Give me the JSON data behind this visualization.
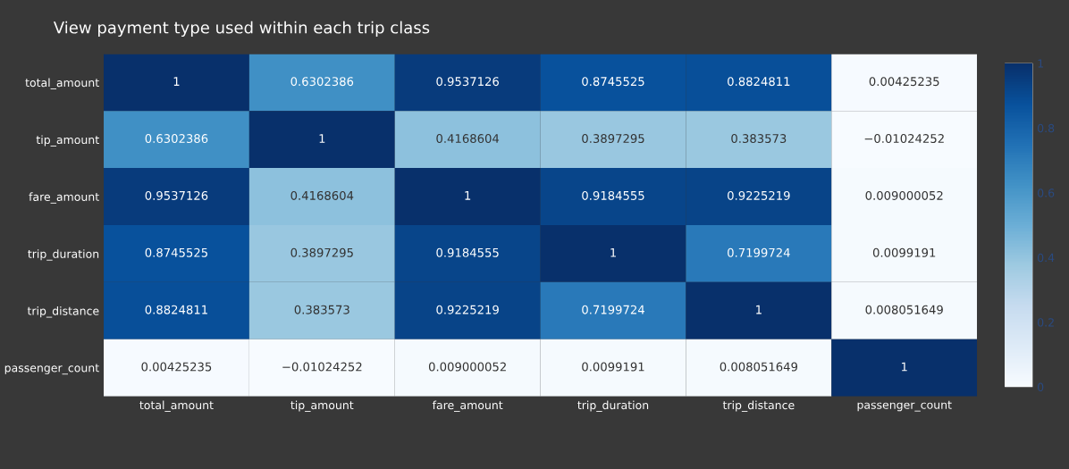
{
  "chart_data": {
    "type": "heatmap",
    "title": "View payment type used within each trip class",
    "categories": [
      "total_amount",
      "tip_amount",
      "fare_amount",
      "trip_duration",
      "trip_distance",
      "passenger_count"
    ],
    "y_categories": [
      "total_amount",
      "tip_amount",
      "fare_amount",
      "trip_duration",
      "trip_distance",
      "passenger_count"
    ],
    "cells": [
      [
        1,
        0.6302386,
        0.9537126,
        0.8745525,
        0.8824811,
        0.00425235
      ],
      [
        0.6302386,
        1,
        0.4168604,
        0.3897295,
        0.383573,
        -0.01024252
      ],
      [
        0.9537126,
        0.4168604,
        1,
        0.9184555,
        0.9225219,
        0.009000052
      ],
      [
        0.8745525,
        0.3897295,
        0.9184555,
        1,
        0.7199724,
        0.0099191
      ],
      [
        0.8824811,
        0.383573,
        0.9225219,
        0.7199724,
        1,
        0.008051649
      ],
      [
        0.00425235,
        -0.01024252,
        0.009000052,
        0.0099191,
        0.008051649,
        1
      ]
    ],
    "cell_labels": [
      [
        "1",
        "0.6302386",
        "0.9537126",
        "0.8745525",
        "0.8824811",
        "0.00425235"
      ],
      [
        "0.6302386",
        "1",
        "0.4168604",
        "0.3897295",
        "0.383573",
        "−0.01024252"
      ],
      [
        "0.9537126",
        "0.4168604",
        "1",
        "0.9184555",
        "0.9225219",
        "0.009000052"
      ],
      [
        "0.8745525",
        "0.3897295",
        "0.9184555",
        "1",
        "0.7199724",
        "0.0099191"
      ],
      [
        "0.8824811",
        "0.383573",
        "0.9225219",
        "0.7199724",
        "1",
        "0.008051649"
      ],
      [
        "0.00425235",
        "−0.01024252",
        "0.009000052",
        "0.0099191",
        "0.008051649",
        "1"
      ]
    ],
    "clim": [
      0,
      1
    ],
    "cticks": [
      0,
      0.2,
      0.4,
      0.6,
      0.8,
      1
    ]
  }
}
